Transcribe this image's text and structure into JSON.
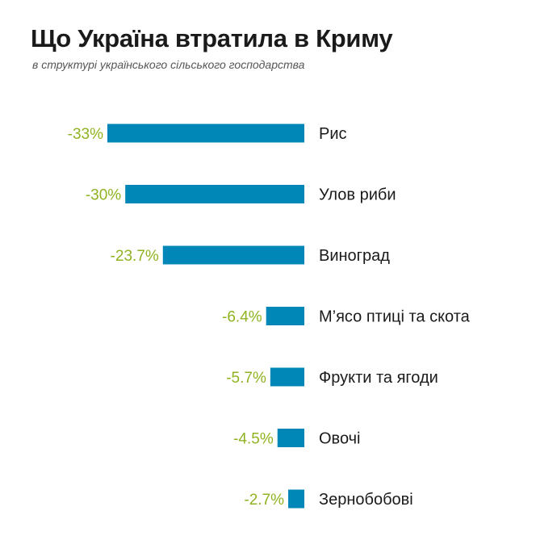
{
  "header": {
    "title": "Що Україна втратила в Криму",
    "subtitle": "в структурі українського сільського господарства"
  },
  "colors": {
    "bar": "#0087b8",
    "value_label": "#8fb320",
    "text": "#1a1a1a"
  },
  "chart_data": {
    "type": "bar",
    "orientation": "horizontal",
    "title": "Що Україна втратила в Криму",
    "subtitle": "в структурі українського сільського господарства",
    "categories": [
      "Рис",
      "Улов риби",
      "Виноград",
      "М’ясо птиці та скота",
      "Фрукти та ягоди",
      "Овочі",
      "Зернобобові"
    ],
    "values": [
      -33,
      -30,
      -23.7,
      -6.4,
      -5.7,
      -4.5,
      -2.7
    ],
    "value_labels": [
      "-33%",
      "-30%",
      "-23.7%",
      "-6.4%",
      "-5.7%",
      "-4.5%",
      "-2.7%"
    ],
    "xlim": [
      -33,
      0
    ],
    "grid": false,
    "legend": false
  }
}
